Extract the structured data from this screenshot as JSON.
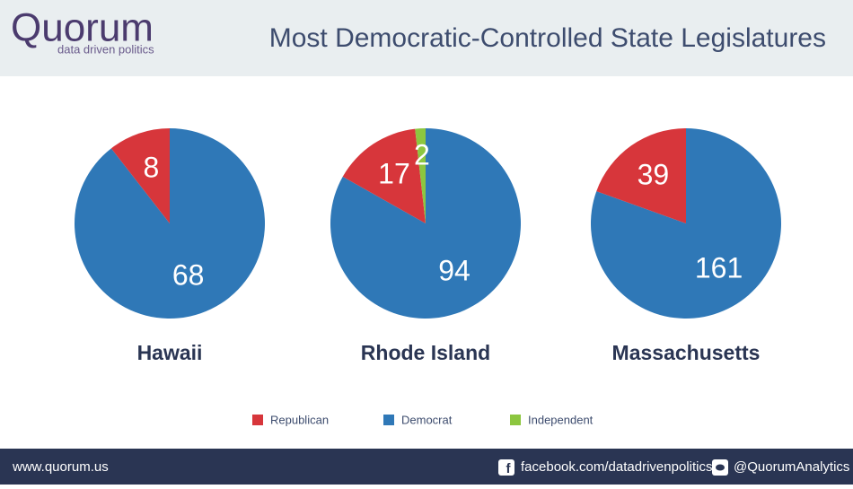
{
  "header": {
    "logo": "Quorum",
    "tagline": "data driven politics",
    "title": "Most Democratic-Controlled State Legislatures"
  },
  "chart_data": [
    {
      "type": "pie",
      "title": "Hawaii",
      "values": [
        8,
        68
      ]
    },
    {
      "type": "pie",
      "title": "Rhode Island",
      "values": [
        17,
        94,
        2
      ]
    },
    {
      "type": "pie",
      "title": "Massachusetts",
      "values": [
        39,
        161
      ]
    }
  ],
  "legend": [
    {
      "name": "Republican",
      "color": "#d7363b"
    },
    {
      "name": "Democrat",
      "color": "#2f78b7"
    },
    {
      "name": "Independent",
      "color": "#8cc63f"
    }
  ],
  "footer": {
    "website": "www.quorum.us",
    "facebook": "facebook.com/datadrivenpolitics",
    "twitter": "@QuorumAnalytics"
  }
}
